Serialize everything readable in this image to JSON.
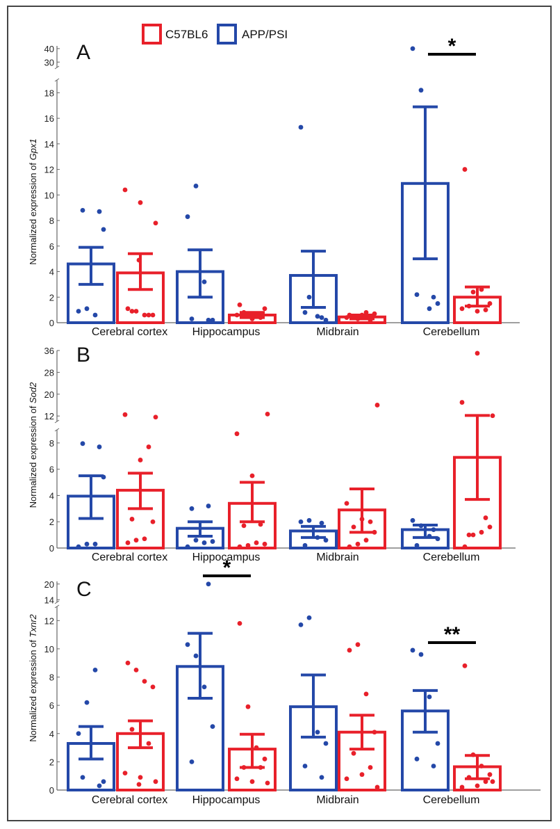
{
  "legend": {
    "entries": [
      {
        "label": "C57BL6",
        "color": "#e8202a"
      },
      {
        "label": "APP/PSI",
        "color": "#2448a8"
      }
    ]
  },
  "chart_data": [
    {
      "type": "bar",
      "panel": "A",
      "ylabel_prefix": "Normalized expression of ",
      "ylabel_gene": "Gpx1",
      "categories": [
        "Cerebral cortex",
        "Hippocampus",
        "Midbrain",
        "Cerebellum"
      ],
      "ylim": [
        0,
        19
      ],
      "yticks": [
        0,
        2,
        4,
        6,
        8,
        10,
        12,
        14,
        16,
        18
      ],
      "broken_axis_upper": {
        "ticks": [
          30,
          40
        ],
        "range": [
          26,
          42
        ]
      },
      "series": [
        {
          "name": "APP/PSI",
          "color": "#2448a8",
          "values": [
            4.6,
            4.0,
            3.7,
            10.9
          ],
          "err_low": [
            3.0,
            2.0,
            1.2,
            5.0
          ],
          "err_high": [
            5.9,
            5.7,
            5.6,
            16.9
          ],
          "points": [
            [
              0.9,
              1.1,
              0.6,
              7.3,
              8.8,
              8.7
            ],
            [
              8.3,
              10.7,
              3.2,
              0.2,
              0.3,
              0.2
            ],
            [
              15.3,
              2.0,
              0.5,
              0.2,
              0.8,
              0.4
            ],
            [
              40,
              18.2,
              1.1,
              1.5,
              2.2,
              2.0
            ]
          ]
        },
        {
          "name": "C57BL6",
          "color": "#e8202a",
          "values": [
            3.9,
            0.6,
            0.45,
            2.0
          ],
          "err_low": [
            2.6,
            0.4,
            0.3,
            1.3
          ],
          "err_high": [
            5.4,
            0.8,
            0.6,
            2.8
          ],
          "points": [
            [
              1.1,
              0.9,
              0.6,
              0.6,
              0.9,
              0.6,
              9.4,
              10.4,
              7.8,
              4.9
            ],
            [
              1.4,
              0.7,
              0.5,
              1.1,
              0.8,
              0.4,
              0.3,
              0.6
            ],
            [
              0.6,
              0.3,
              0.8,
              0.7,
              0.5,
              0.2,
              0.6,
              0.4
            ],
            [
              12.0,
              2.4,
              2.6,
              1.5,
              1.3,
              1.0,
              0.9,
              1.1
            ]
          ]
        }
      ],
      "significance": [
        {
          "category": "Cerebellum",
          "label": "*"
        }
      ]
    },
    {
      "type": "bar",
      "panel": "B",
      "ylabel_prefix": "Normalized expression of ",
      "ylabel_gene": "Sod2",
      "categories": [
        "Cerebral cortex",
        "Hippocampus",
        "Midbrain",
        "Cerebellum"
      ],
      "ylim": [
        0,
        9
      ],
      "yticks": [
        0,
        2,
        4,
        6,
        8
      ],
      "broken_axis_upper": {
        "ticks": [
          12,
          20,
          28,
          36
        ],
        "range": [
          10,
          36
        ]
      },
      "series": [
        {
          "name": "APP/PSI",
          "color": "#2448a8",
          "values": [
            3.95,
            1.5,
            1.3,
            1.4
          ],
          "err_low": [
            2.25,
            0.9,
            0.8,
            0.8
          ],
          "err_high": [
            5.5,
            2.0,
            1.65,
            1.75
          ],
          "points": [
            [
              0.1,
              0.3,
              0.3,
              5.4,
              7.95,
              7.7
            ],
            [
              0.1,
              0.6,
              0.4,
              0.5,
              3.0,
              3.2
            ],
            [
              2.0,
              2.1,
              0.8,
              0.6,
              0.2,
              1.9
            ],
            [
              2.1,
              1.7,
              0.9,
              0.7,
              0.2,
              1.4
            ]
          ]
        },
        {
          "name": "C57BL6",
          "color": "#e8202a",
          "values": [
            4.4,
            3.4,
            2.9,
            6.9
          ],
          "err_low": [
            3.0,
            2.0,
            1.2,
            3.7
          ],
          "err_high": [
            5.7,
            5.0,
            4.5,
            12.2
          ],
          "points": [
            [
              0.4,
              0.6,
              0.7,
              2.0,
              2.2,
              7.7,
              6.7,
              12.5,
              11.6
            ],
            [
              0.1,
              0.2,
              0.4,
              0.3,
              1.7,
              1.8,
              5.5,
              8.7,
              12.7
            ],
            [
              0.1,
              0.3,
              0.6,
              1.2,
              1.6,
              2.0,
              2.2,
              3.4,
              16.0
            ],
            [
              0.1,
              1.0,
              1.2,
              1.6,
              1.0,
              2.3,
              35.0,
              17.0,
              12.1
            ]
          ]
        }
      ],
      "significance": []
    },
    {
      "type": "bar",
      "panel": "C",
      "ylabel_prefix": "Normalized expression of ",
      "ylabel_gene": "Txnr2",
      "categories": [
        "Cerebral cortex",
        "Hippocampus",
        "Midbrain",
        "Cerebellum"
      ],
      "ylim": [
        0,
        13
      ],
      "yticks": [
        0,
        2,
        4,
        6,
        8,
        10,
        12
      ],
      "broken_axis_upper": {
        "ticks": [
          14,
          20
        ],
        "range": [
          13,
          21
        ]
      },
      "series": [
        {
          "name": "APP/PSI",
          "color": "#2448a8",
          "values": [
            3.3,
            8.75,
            5.9,
            5.6
          ],
          "err_low": [
            2.2,
            6.5,
            3.75,
            4.1
          ],
          "err_high": [
            4.5,
            11.1,
            8.15,
            7.05
          ],
          "points": [
            [
              4.0,
              6.2,
              8.5,
              0.6,
              0.9,
              0.3
            ],
            [
              10.3,
              9.5,
              7.3,
              4.5,
              2.0,
              20.0
            ],
            [
              11.7,
              12.2,
              4.1,
              3.3,
              1.7,
              0.9
            ],
            [
              9.9,
              9.6,
              6.6,
              3.3,
              2.2,
              1.7
            ]
          ]
        },
        {
          "name": "C57BL6",
          "color": "#e8202a",
          "values": [
            4.0,
            2.9,
            4.1,
            1.65
          ],
          "err_low": [
            3.0,
            1.6,
            2.9,
            0.8
          ],
          "err_high": [
            4.9,
            3.95,
            5.3,
            2.45
          ],
          "points": [
            [
              9.0,
              8.5,
              7.7,
              7.3,
              4.3,
              3.3,
              0.9,
              1.2,
              0.6,
              0.4
            ],
            [
              11.8,
              5.9,
              3.0,
              2.2,
              1.6,
              1.6,
              0.6,
              0.8,
              0.5
            ],
            [
              9.9,
              10.3,
              6.8,
              4.1,
              2.6,
              1.6,
              1.1,
              0.8,
              0.2
            ],
            [
              8.8,
              2.5,
              1.7,
              1.1,
              0.9,
              0.6,
              0.3,
              0.2,
              0.6
            ]
          ]
        }
      ],
      "significance": [
        {
          "category": "Hippocampus",
          "label": "*"
        },
        {
          "category": "Cerebellum",
          "label": "**"
        }
      ]
    }
  ]
}
